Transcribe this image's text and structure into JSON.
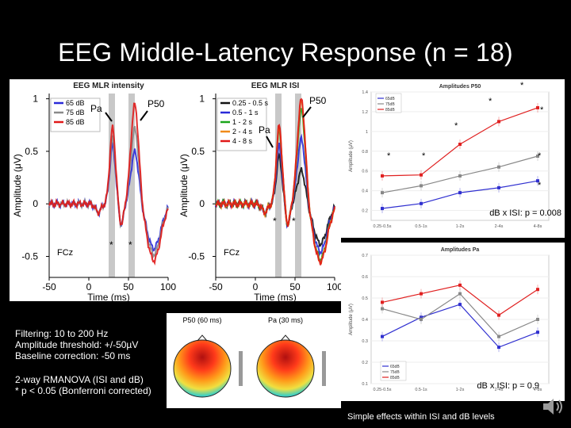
{
  "slide": {
    "title": "EEG Middle-Latency Response (n = 18)",
    "filter_notes": [
      "Filtering: 10 to 200 Hz",
      "Amplitude threshold: +/-50µV",
      "Baseline correction: -50 ms"
    ],
    "stat_notes": [
      "2-way RMANOVA (ISI and dB)",
      "* p < 0.05 (Bonferroni corrected)"
    ],
    "footer": "Simple effects within ISI and dB levels"
  },
  "panel_intensity": {
    "title": "EEG MLR intensity",
    "ylabel": "Amplitude (μV)",
    "xlabel": "Time (ms)",
    "electrode": "FCz",
    "xticks": [
      "-50",
      "0",
      "50",
      "100"
    ],
    "yticks": [
      "1",
      "0.5",
      "0",
      "-0.5"
    ],
    "legend": [
      "65 dB",
      "75 dB",
      "85 dB"
    ],
    "colors": [
      "#2a2ad8",
      "#8a8a8a",
      "#e01818"
    ],
    "peak_labels": [
      "Pa",
      "P50"
    ],
    "sig_marks": [
      "*",
      "*"
    ]
  },
  "panel_isi": {
    "title": "EEG MLR ISI",
    "ylabel": "Amplitude (μV)",
    "xlabel": "Time (ms)",
    "electrode": "FCz",
    "xticks": [
      "-50",
      "0",
      "50",
      "100"
    ],
    "yticks": [
      "1",
      "0.5",
      "0",
      "-0.5"
    ],
    "legend": [
      "0.25 - 0.5 s",
      "0.5 - 1 s",
      "1 - 2 s",
      "2 - 4 s",
      "4 - 8 s"
    ],
    "colors": [
      "#111111",
      "#2a2ad8",
      "#1aa51a",
      "#f08a1a",
      "#e01818"
    ],
    "peak_labels": [
      "P50",
      "Pa"
    ],
    "sig_marks": [
      "*",
      "*"
    ]
  },
  "topomaps": {
    "labels": [
      "P50 (60 ms)",
      "Pa (30 ms)"
    ]
  },
  "chart_data": [
    {
      "type": "line",
      "title": "Amplitudes P50",
      "ylabel": "Amplitude (μV)",
      "categories": [
        "0.25-0.5s",
        "0.5-1s",
        "1-2s",
        "2-4s",
        "4-8s"
      ],
      "series": [
        {
          "name": "65dB",
          "values": [
            0.22,
            0.27,
            0.38,
            0.43,
            0.5
          ]
        },
        {
          "name": "75dB",
          "values": [
            0.38,
            0.45,
            0.55,
            0.64,
            0.75
          ]
        },
        {
          "name": "85dB",
          "values": [
            0.55,
            0.56,
            0.87,
            1.1,
            1.24
          ]
        }
      ],
      "colors": [
        "#3030d0",
        "#888888",
        "#e02020"
      ],
      "ylim": [
        0.1,
        1.4
      ],
      "yticks": [
        "1.4",
        "1.2",
        "1",
        "0.8",
        "0.6",
        "0.4",
        "0.2"
      ],
      "annotation": "dB x ISI: p = 0.008",
      "sig_marks": [
        "*",
        "*",
        "*",
        "*",
        "*",
        "*",
        "*"
      ]
    },
    {
      "type": "line",
      "title": "Amplitudes Pa",
      "ylabel": "Amplitude (μV)",
      "categories": [
        "0.25-0.5s",
        "0.5-1s",
        "1-2s",
        "2-4s",
        "4-8s"
      ],
      "series": [
        {
          "name": "65dB",
          "values": [
            0.32,
            0.41,
            0.47,
            0.27,
            0.34
          ]
        },
        {
          "name": "75dB",
          "values": [
            0.45,
            0.4,
            0.52,
            0.32,
            0.4
          ]
        },
        {
          "name": "85dB",
          "values": [
            0.48,
            0.52,
            0.56,
            0.42,
            0.54
          ]
        }
      ],
      "colors": [
        "#3030d0",
        "#888888",
        "#e02020"
      ],
      "ylim": [
        0.1,
        0.7
      ],
      "yticks": [
        "0.7",
        "0.6",
        "0.5",
        "0.4",
        "0.3",
        "0.2",
        "0.1"
      ],
      "annotation": "dB x ISI: p = 0.9"
    }
  ]
}
